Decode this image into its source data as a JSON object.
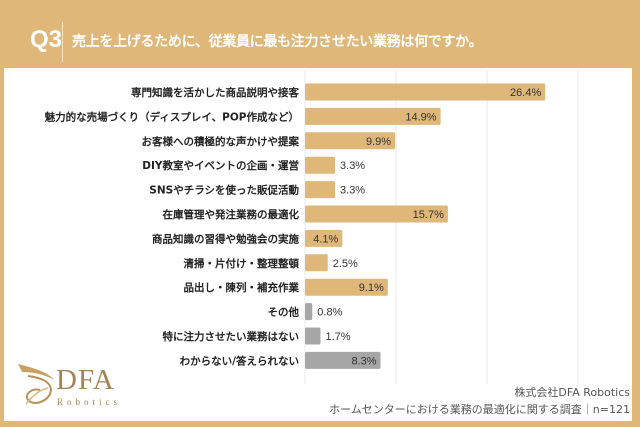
{
  "header": {
    "question_number": "Q3",
    "question_text": "売上を上げるために、従業員に最も注力させたい業務は何ですか。"
  },
  "colors": {
    "frame": "#dfb779",
    "bar_main": "#dfb779",
    "bar_other": "#a6a6a6",
    "grid": "#e8e8e8"
  },
  "chart_data": {
    "type": "bar",
    "orientation": "horizontal",
    "title": "売上を上げるために、従業員に最も注力させたい業務は何ですか。",
    "xlabel": "",
    "ylabel": "",
    "xlim": [
      0,
      40
    ],
    "grid": true,
    "unit": "%",
    "categories": [
      "専門知識を活かした商品説明や接客",
      "魅力的な売場づくり（ディスプレイ、POP作成など）",
      "お客様への積極的な声かけや提案",
      "DIY教室やイベントの企画・運営",
      "SNSやチラシを使った販促活動",
      "在庫管理や発注業務の最適化",
      "商品知識の習得や勉強会の実施",
      "清掃・片付け・整理整頓",
      "品出し・陳列・補充作業",
      "その他",
      "特に注力させたい業務はない",
      "わからない/答えられない"
    ],
    "values": [
      26.4,
      14.9,
      9.9,
      3.3,
      3.3,
      15.7,
      4.1,
      2.5,
      9.1,
      0.8,
      1.7,
      8.3
    ],
    "labels": [
      "26.4%",
      "14.9%",
      "9.9%",
      "3.3%",
      "3.3%",
      "15.7%",
      "4.1%",
      "2.5%",
      "9.1%",
      "0.8%",
      "1.7%",
      "8.3%"
    ],
    "bar_groups": [
      "main",
      "main",
      "main",
      "main",
      "main",
      "main",
      "main",
      "main",
      "main",
      "other",
      "other",
      "other"
    ]
  },
  "logo": {
    "name": "DFA",
    "sub": "Robotics"
  },
  "footer": {
    "company": "株式会社DFA Robotics",
    "source": "ホームセンターにおける業務の最適化に関する調査｜n=121"
  }
}
